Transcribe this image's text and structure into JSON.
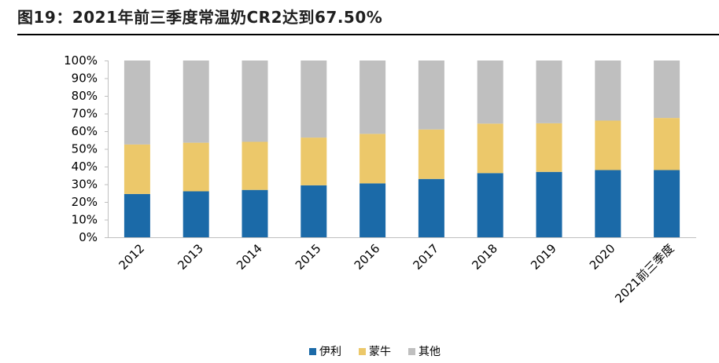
{
  "title": "图19：2021年前三季度常温奶CR2达到67.50%",
  "chart_data": {
    "type": "bar",
    "stacked": true,
    "categories": [
      "2012",
      "2013",
      "2014",
      "2015",
      "2016",
      "2017",
      "2018",
      "2019",
      "2020",
      "2021前三季度"
    ],
    "yticks": [
      "0%",
      "10%",
      "20%",
      "30%",
      "40%",
      "50%",
      "60%",
      "70%",
      "80%",
      "90%",
      "100%"
    ],
    "ylim": [
      0,
      100
    ],
    "grid": false,
    "legend_position": "bottom",
    "series": [
      {
        "name": "伊利",
        "color": "#1b6aa8",
        "values": [
          24.5,
          26.0,
          26.8,
          29.4,
          30.5,
          33.0,
          36.3,
          37.0,
          38.0,
          38.0
        ]
      },
      {
        "name": "蒙牛",
        "color": "#ecc86a",
        "values": [
          28.0,
          27.5,
          27.2,
          27.0,
          28.0,
          28.0,
          28.0,
          27.5,
          28.0,
          29.5
        ]
      },
      {
        "name": "其他",
        "color": "#bfbfbf",
        "values": [
          47.5,
          46.5,
          46.0,
          43.6,
          41.5,
          39.0,
          35.7,
          35.5,
          34.0,
          32.5
        ]
      }
    ]
  }
}
